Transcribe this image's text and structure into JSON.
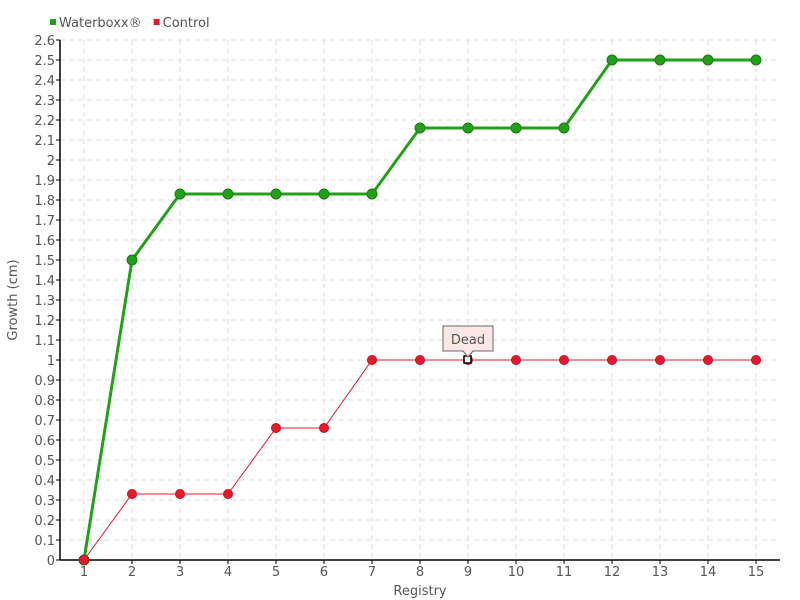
{
  "chart_data": {
    "type": "line",
    "title": "",
    "xlabel": "Registry",
    "ylabel": "Growth (cm)",
    "x": [
      1,
      2,
      3,
      4,
      5,
      6,
      7,
      8,
      9,
      10,
      11,
      12,
      13,
      14,
      15
    ],
    "xlim": [
      0.5,
      15.5
    ],
    "ylim": [
      0,
      2.6
    ],
    "yticks": [
      0,
      0.1,
      0.2,
      0.3,
      0.4,
      0.5,
      0.6,
      0.7,
      0.8,
      0.9,
      1,
      1.1,
      1.2,
      1.3,
      1.4,
      1.5,
      1.6,
      1.7,
      1.8,
      1.9,
      2,
      2.1,
      2.2,
      2.3,
      2.4,
      2.5,
      2.6
    ],
    "grid": true,
    "legend_position": "top-left",
    "series": [
      {
        "name": "Waterboxx®",
        "color": "#22a01a",
        "values": [
          0,
          1.5,
          1.83,
          1.83,
          1.83,
          1.83,
          1.83,
          2.16,
          2.16,
          2.16,
          2.16,
          2.5,
          2.5,
          2.5,
          2.5
        ]
      },
      {
        "name": "Control",
        "color": "#e8192c",
        "values": [
          0,
          0.33,
          0.33,
          0.33,
          0.66,
          0.66,
          1,
          1,
          1,
          1,
          1,
          1,
          1,
          1,
          1
        ]
      }
    ],
    "annotations": [
      {
        "text": "Dead",
        "series": "Control",
        "x": 9,
        "y": 1
      }
    ]
  }
}
